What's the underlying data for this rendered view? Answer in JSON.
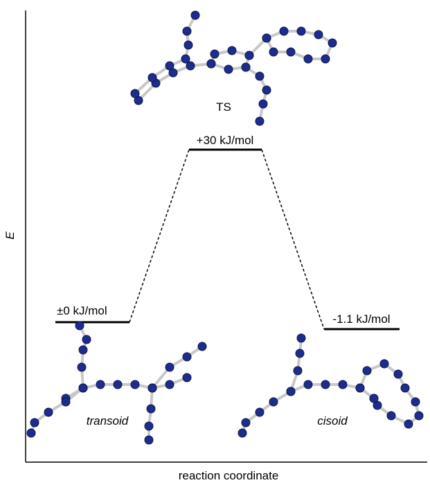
{
  "axes": {
    "y_label": "E",
    "x_label": "reaction coordinate"
  },
  "levels": [
    {
      "energy": "±0 kJ/mol",
      "structure": "transoid"
    },
    {
      "energy": "+30 kJ/mol",
      "structure": "TS"
    },
    {
      "energy": "-1.1 kJ/mol",
      "structure": "cisoid"
    }
  ]
}
